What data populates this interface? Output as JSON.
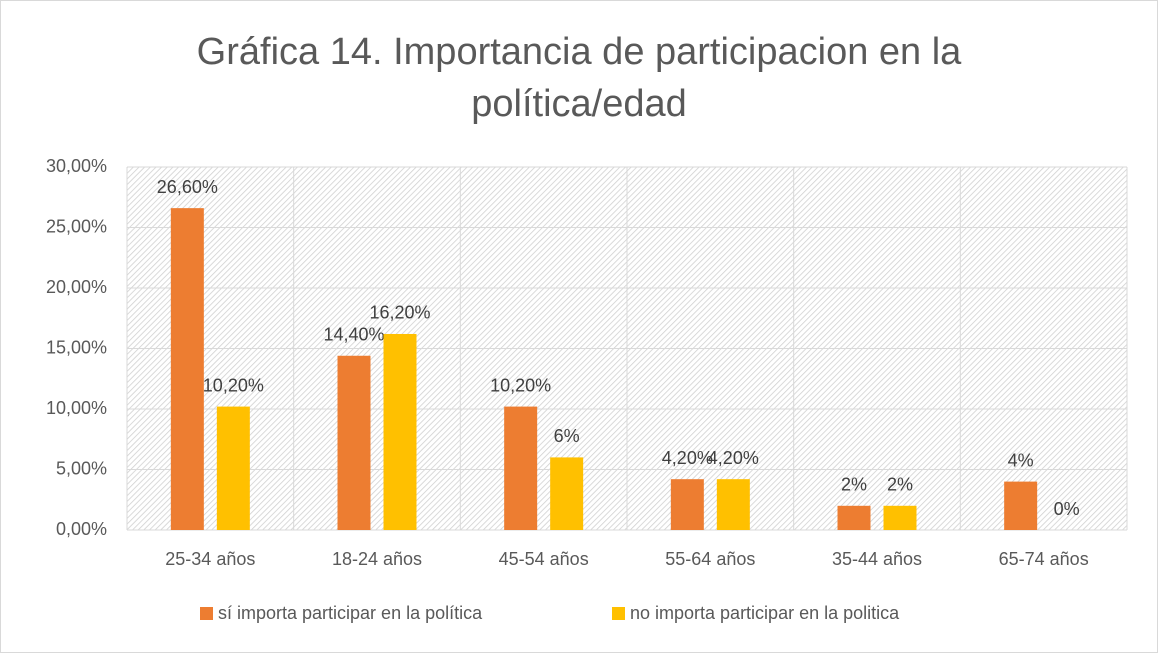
{
  "chart_data": {
    "type": "bar",
    "title": "Gráfica 14. Importancia de participacion en la política/edad",
    "categories": [
      "25-34 años",
      "18-24 años",
      "45-54 años",
      "55-64 años",
      "35-44 años",
      "65-74 años"
    ],
    "series": [
      {
        "name": "sí importa participar en la política",
        "color": "#ED7D31",
        "values": [
          26.6,
          14.4,
          10.2,
          4.2,
          2,
          4
        ],
        "value_labels": [
          "26,60%",
          "14,40%",
          "10,20%",
          "4,20%",
          "2%",
          "4%"
        ]
      },
      {
        "name": "no importa participar en la politica",
        "color": "#FFC000",
        "values": [
          10.2,
          16.2,
          6,
          4.2,
          2,
          0
        ],
        "value_labels": [
          "10,20%",
          "16,20%",
          "6%",
          "4,20%",
          "2%",
          "0%"
        ]
      }
    ],
    "ylim": [
      0,
      30
    ],
    "yticks": [
      {
        "value": 0,
        "label": "0,00%"
      },
      {
        "value": 5,
        "label": "5,00%"
      },
      {
        "value": 10,
        "label": "10,00%"
      },
      {
        "value": 15,
        "label": "15,00%"
      },
      {
        "value": 20,
        "label": "20,00%"
      },
      {
        "value": 25,
        "label": "25,00%"
      },
      {
        "value": 30,
        "label": "30,00%"
      }
    ],
    "grid": true,
    "legend": "bottom"
  }
}
